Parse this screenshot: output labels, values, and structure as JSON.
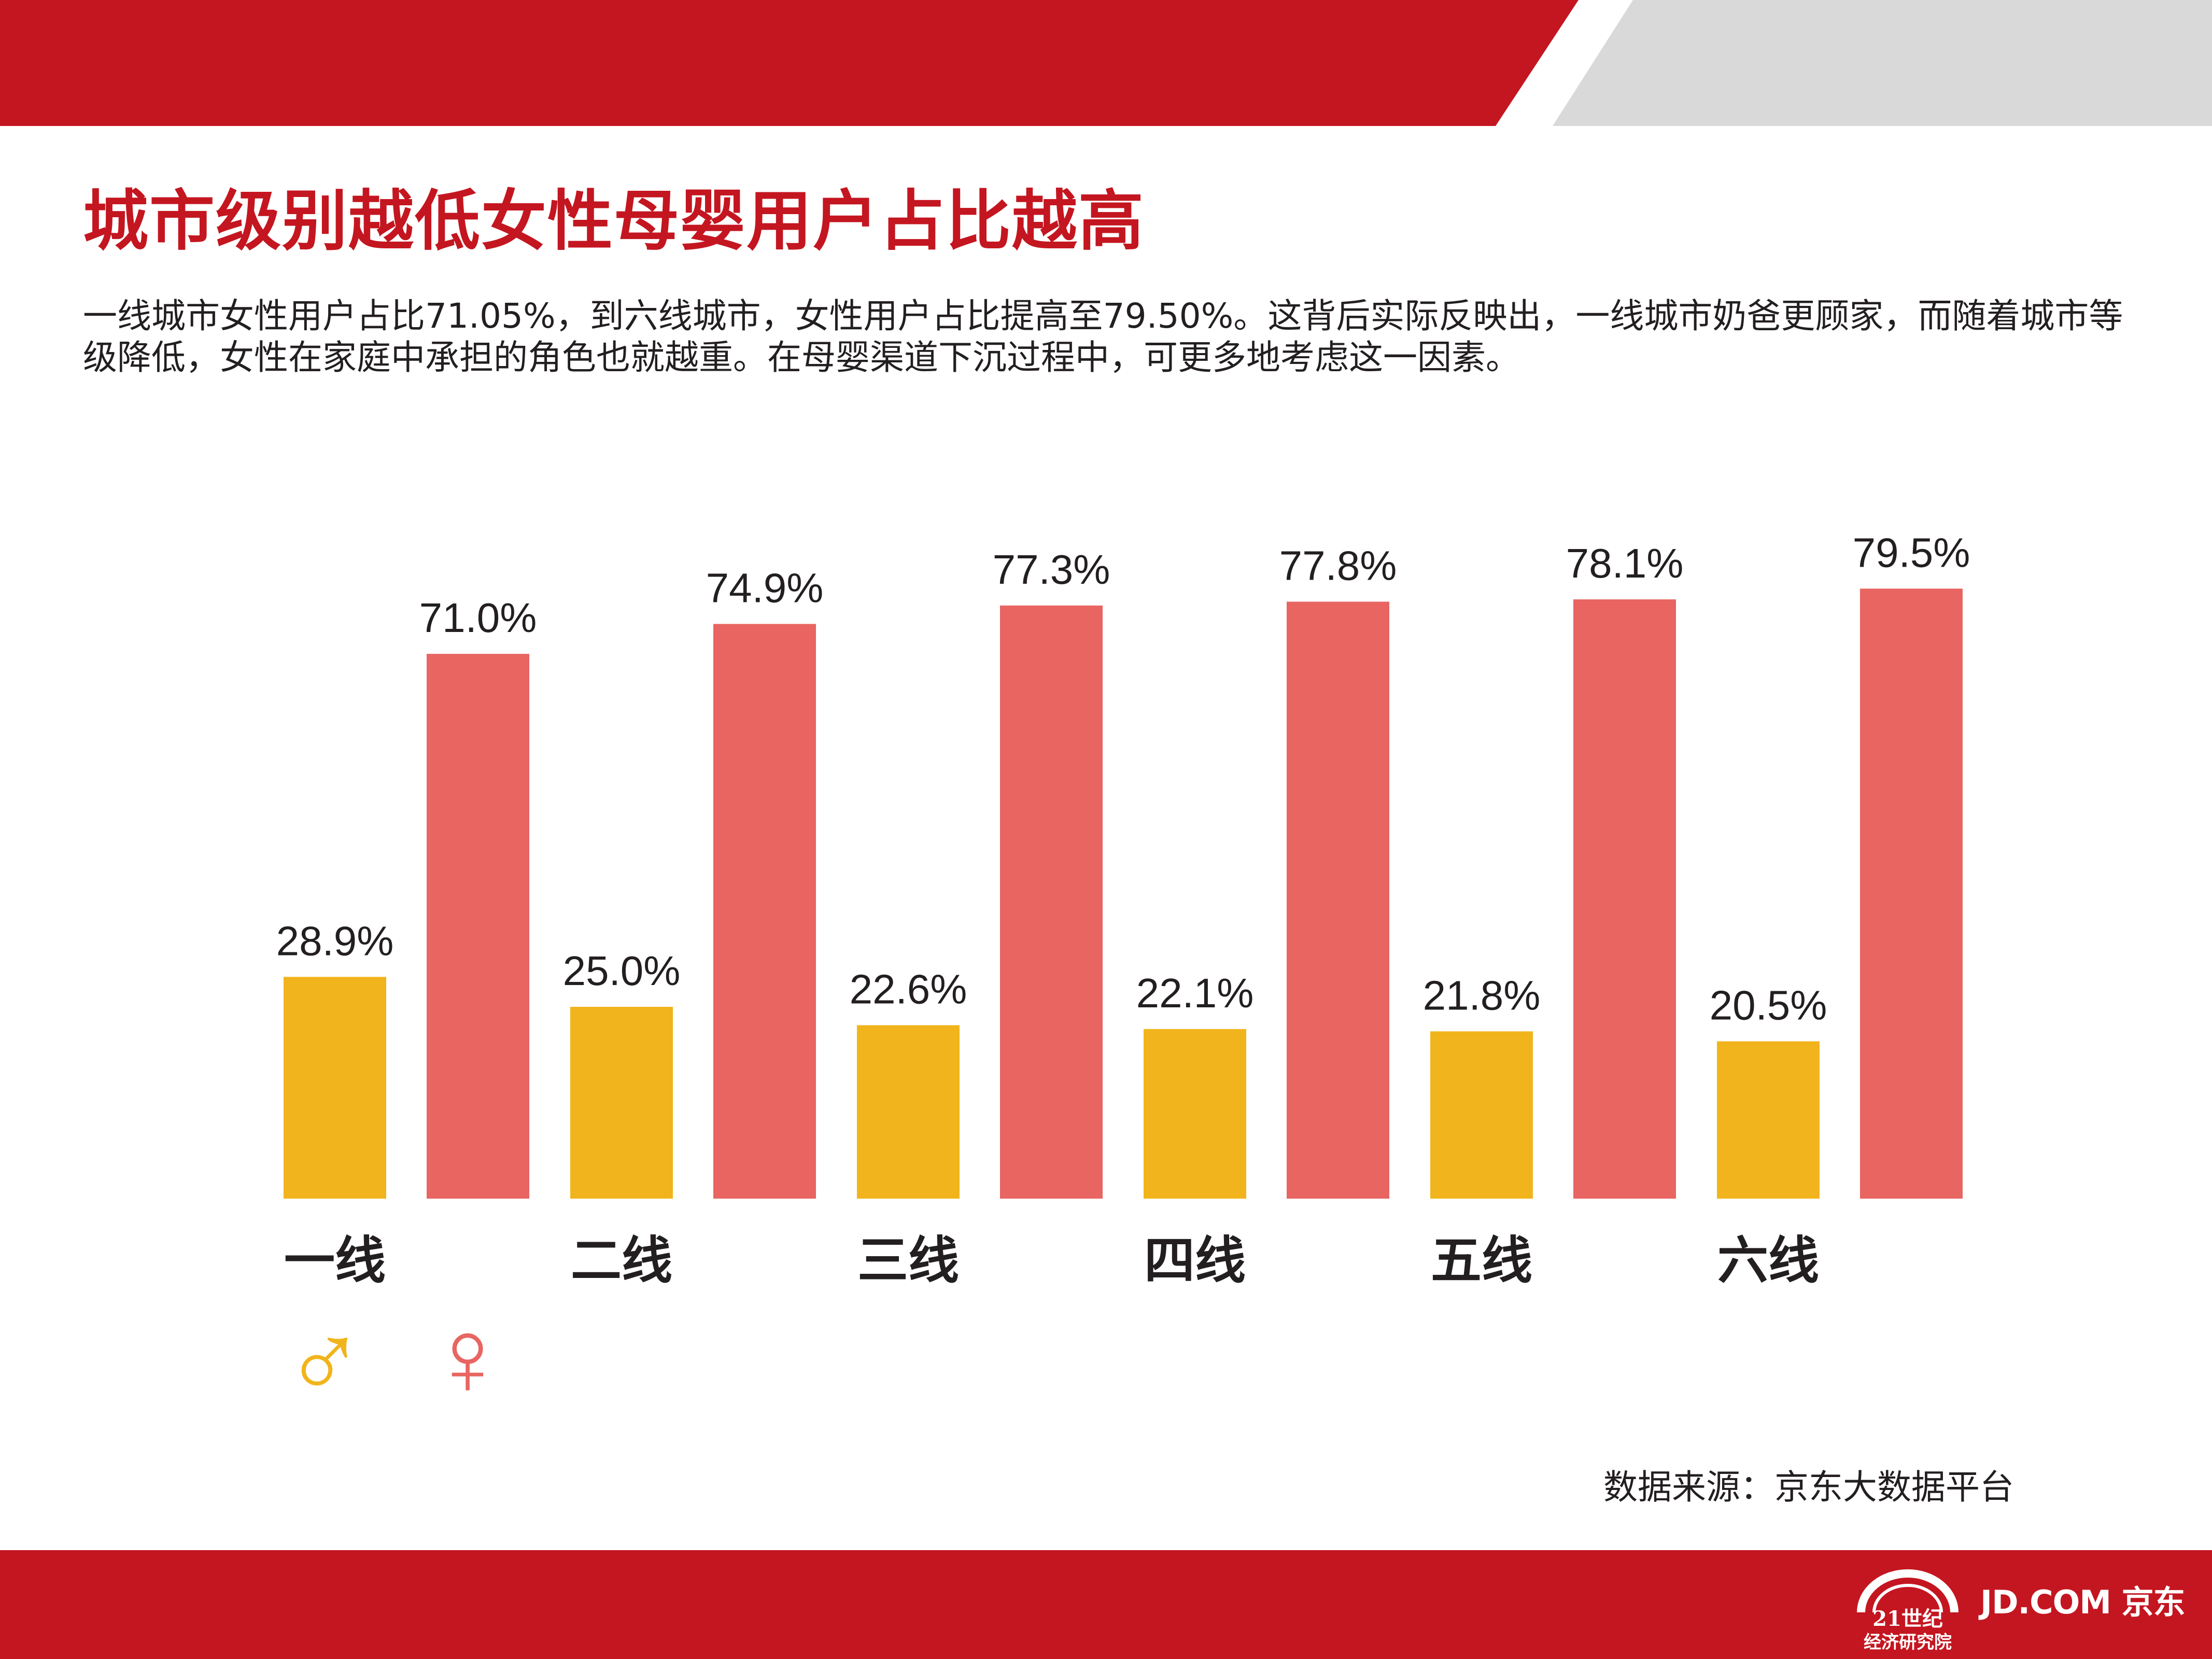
{
  "theme": {
    "red": "#c41620",
    "gray": "#d9d9d9",
    "male_color": "#f1b41c",
    "female_color": "#e86562",
    "text_color": "#231f20",
    "title_color": "#c41620"
  },
  "header": {
    "title": "城市级别越低女性母婴用户占比越高",
    "description": "一线城市女性用户占比71.05%，到六线城市，女性用户占比提高至79.50%。这背后实际反映出，一线城市奶爸更顾家，而随着城市等级降低，女性在家庭中承担的角色也就越重。在母婴渠道下沉过程中，可更多地考虑这一因素。"
  },
  "chart_data": {
    "type": "bar",
    "title": "",
    "xlabel": "",
    "ylabel": "",
    "ylim": [
      0,
      100
    ],
    "categories": [
      "一线",
      "二线",
      "三线",
      "四线",
      "五线",
      "六线"
    ],
    "series": [
      {
        "name": "male",
        "symbol": "♂",
        "color": "#f1b41c",
        "values": [
          28.9,
          25.0,
          22.6,
          22.1,
          21.8,
          20.5
        ],
        "labels": [
          "28.9%",
          "25.0%",
          "22.6%",
          "22.1%",
          "21.8%",
          "20.5%"
        ]
      },
      {
        "name": "female",
        "symbol": "♀",
        "color": "#e86562",
        "values": [
          71.0,
          74.9,
          77.3,
          77.8,
          78.1,
          79.5
        ],
        "labels": [
          "71.0%",
          "74.9%",
          "77.3%",
          "77.8%",
          "78.1%",
          "79.5%"
        ]
      }
    ],
    "legend": [
      "♂",
      "♀"
    ],
    "legend_position": "bottom-left",
    "grid": false
  },
  "footer": {
    "source": "数据来源：京东大数据平台",
    "logo_21_main": "21世纪",
    "logo_21_sub": "经济研究院",
    "jd_logo": "JD.COM 京东"
  }
}
